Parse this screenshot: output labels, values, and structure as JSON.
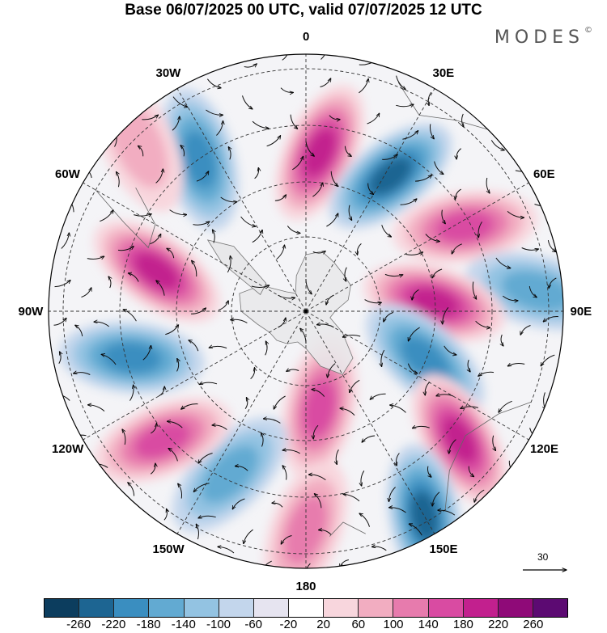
{
  "title": "Base 06/07/2025 00 UTC, valid 07/07/2025 12 UTC",
  "logo": {
    "text": "MODES",
    "mark": "©"
  },
  "longitude_labels": [
    {
      "id": "lon-0",
      "text": "0"
    },
    {
      "id": "lon-30e",
      "text": "30E"
    },
    {
      "id": "lon-60e",
      "text": "60E"
    },
    {
      "id": "lon-90e",
      "text": "90E"
    },
    {
      "id": "lon-120e",
      "text": "120E"
    },
    {
      "id": "lon-150e",
      "text": "150E"
    },
    {
      "id": "lon-180",
      "text": "180"
    },
    {
      "id": "lon-150w",
      "text": "150W"
    },
    {
      "id": "lon-120w",
      "text": "120W"
    },
    {
      "id": "lon-90w",
      "text": "90W"
    },
    {
      "id": "lon-60w",
      "text": "60W"
    },
    {
      "id": "lon-30w",
      "text": "30W"
    }
  ],
  "reference_vector": {
    "label": "30"
  },
  "colorbar": {
    "colors": [
      "#0c3d5e",
      "#1d6592",
      "#3a8ec0",
      "#62aad2",
      "#93c3e2",
      "#c3d6ec",
      "#e6e4f0",
      "#ffffff",
      "#f8d6dd",
      "#f2adc1",
      "#e77bad",
      "#d94ba2",
      "#c2208e",
      "#8f0a78",
      "#5c0a72"
    ],
    "labels": [
      "-260",
      "-220",
      "-180",
      "-140",
      "-100",
      "-60",
      "-20",
      "20",
      "60",
      "100",
      "140",
      "180",
      "220",
      "260"
    ]
  },
  "map_data": {
    "projection": "south-polar-stereographic",
    "field_extremes": [
      {
        "sign": "positive",
        "angle_deg": 5,
        "radius": 0.62,
        "strength": 1.0
      },
      {
        "sign": "negative",
        "angle_deg": 32,
        "radius": 0.62,
        "strength": 0.9
      },
      {
        "sign": "positive",
        "angle_deg": 62,
        "radius": 0.7,
        "strength": 0.85
      },
      {
        "sign": "negative",
        "angle_deg": 85,
        "radius": 0.9,
        "strength": 0.6
      },
      {
        "sign": "positive",
        "angle_deg": 86,
        "radius": 0.5,
        "strength": 0.9
      },
      {
        "sign": "negative",
        "angle_deg": 112,
        "radius": 0.5,
        "strength": 0.8
      },
      {
        "sign": "positive",
        "angle_deg": 130,
        "radius": 0.78,
        "strength": 1.0
      },
      {
        "sign": "negative",
        "angle_deg": 150,
        "radius": 0.92,
        "strength": 0.9
      },
      {
        "sign": "positive",
        "angle_deg": 172,
        "radius": 0.38,
        "strength": 0.7
      },
      {
        "sign": "positive",
        "angle_deg": 180,
        "radius": 0.85,
        "strength": 0.5
      },
      {
        "sign": "negative",
        "angle_deg": 205,
        "radius": 0.7,
        "strength": 0.6
      },
      {
        "sign": "positive",
        "angle_deg": 228,
        "radius": 0.75,
        "strength": 0.7
      },
      {
        "sign": "negative",
        "angle_deg": 255,
        "radius": 0.7,
        "strength": 0.85
      },
      {
        "sign": "positive",
        "angle_deg": 285,
        "radius": 0.6,
        "strength": 1.0
      },
      {
        "sign": "negative",
        "angle_deg": 325,
        "radius": 0.72,
        "strength": 0.85
      },
      {
        "sign": "positive",
        "angle_deg": 315,
        "radius": 0.92,
        "strength": 0.35
      }
    ]
  }
}
